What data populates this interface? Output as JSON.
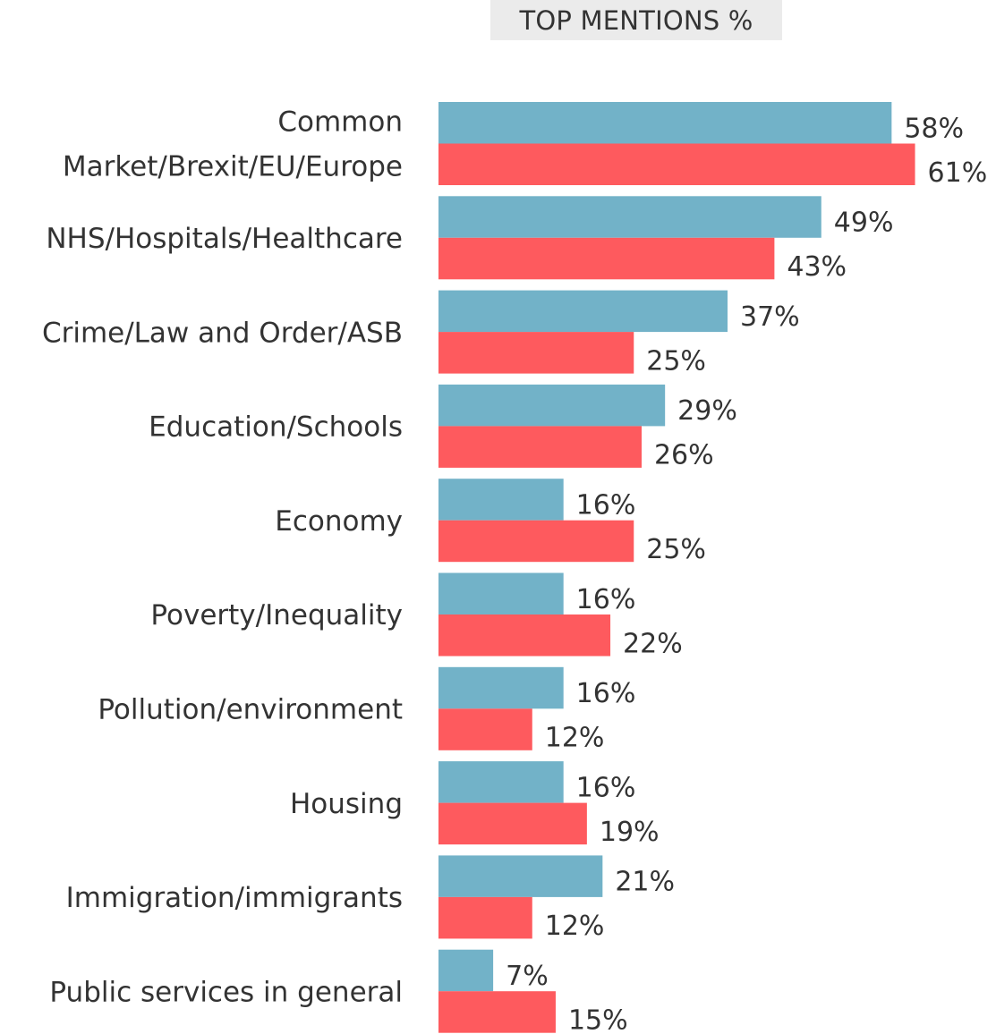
{
  "chart_data": {
    "type": "bar",
    "orientation": "horizontal",
    "title": "TOP MENTIONS %",
    "value_suffix": "%",
    "categories": [
      [
        "Common",
        "Market/Brexit/EU/Europe"
      ],
      [
        "NHS/Hospitals/Healthcare"
      ],
      [
        "Crime/Law and Order/ASB"
      ],
      [
        "Education/Schools"
      ],
      [
        "Economy"
      ],
      [
        "Poverty/Inequality"
      ],
      [
        "Pollution/environment"
      ],
      [
        "Housing"
      ],
      [
        "Immigration/immigrants"
      ],
      [
        "Public services in general"
      ]
    ],
    "series": [
      {
        "values": [
          58,
          49,
          37,
          29,
          16,
          16,
          16,
          16,
          21,
          7
        ],
        "color": "#72b2c8"
      },
      {
        "values": [
          61,
          43,
          25,
          26,
          25,
          22,
          12,
          19,
          12,
          15
        ],
        "color": "#fe5a5e"
      }
    ],
    "xlim": [
      0,
      100
    ],
    "grid": false,
    "legend": "none"
  }
}
